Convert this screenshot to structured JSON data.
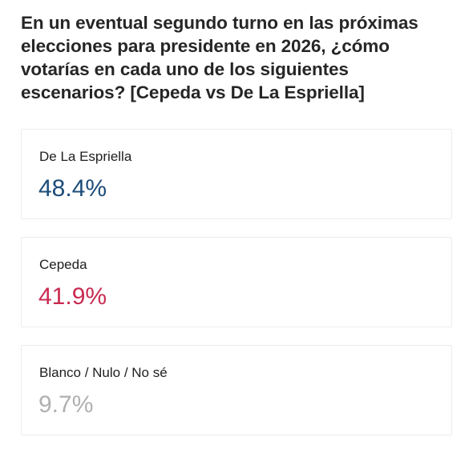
{
  "question": {
    "text": "En un eventual segundo turno en las próximas elecciones para presidente en 2026, ¿cómo votarías en cada uno de los siguientes escenarios? [Cepeda vs De La Espriella]"
  },
  "chart_data": {
    "type": "table",
    "title": "En un eventual segundo turno en las próximas elecciones para presidente en 2026, ¿cómo votarías en cada uno de los siguientes escenarios? [Cepeda vs De La Espriella]",
    "categories": [
      "De La Espriella",
      "Cepeda",
      "Blanco / Nulo / No sé"
    ],
    "values": [
      48.4,
      41.9,
      9.7
    ],
    "value_labels": [
      "48.4%",
      "41.9%",
      "9.7%"
    ],
    "colors": [
      "#1c4c7a",
      "#c92a51",
      "#b0b0b0"
    ]
  }
}
